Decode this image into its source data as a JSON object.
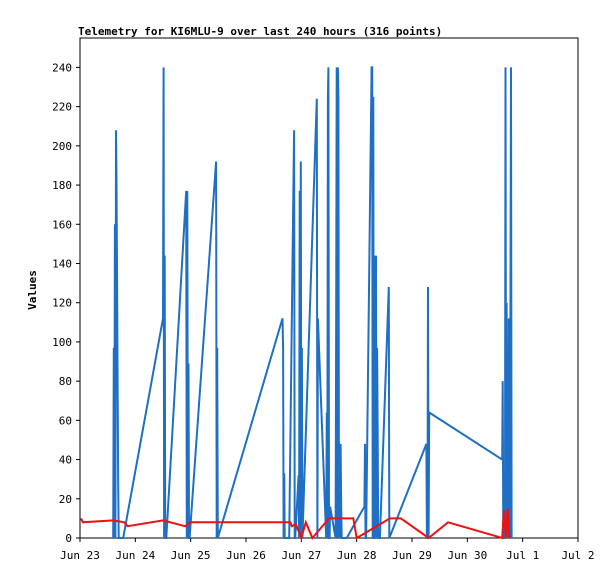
{
  "chart_data": {
    "type": "line",
    "title": "Telemetry for KI6MLU-9 over last 240 hours (316 points)",
    "xlabel": "",
    "ylabel": "Values",
    "x_unit": "days since Jun 23",
    "xlim": [
      0,
      9
    ],
    "ylim": [
      0,
      255
    ],
    "yticks": [
      0,
      20,
      40,
      60,
      80,
      100,
      120,
      140,
      160,
      180,
      200,
      220,
      240
    ],
    "xtick_labels": [
      "Jun 23",
      "Jun 24",
      "Jun 25",
      "Jun 26",
      "Jun 27",
      "Jun 28",
      "Jun 29",
      "Jun 30",
      "Jul 1",
      "Jul 2"
    ],
    "grid": false,
    "legend": "none",
    "colors": {
      "blue": "#1f6fc4",
      "red": "#ee1111"
    },
    "series": [
      {
        "color": "#1f6fc4",
        "x": [
          0.6,
          0.61,
          0.62,
          0.63,
          0.64,
          0.65,
          0.66,
          0.67,
          0.68,
          0.69,
          0.7,
          0.71,
          0.72,
          0.73,
          0.74,
          0.75,
          0.76,
          0.77,
          0.78,
          1.5,
          1.51,
          1.52,
          1.53,
          1.54,
          1.55,
          1.56,
          1.92,
          1.93,
          1.94,
          1.95,
          1.96,
          1.97,
          1.98,
          2.46,
          2.47,
          2.48,
          2.49,
          3.66,
          3.67,
          3.68,
          3.69,
          3.7,
          3.78,
          3.87,
          3.88,
          3.89,
          3.95,
          3.96,
          3.97,
          3.98,
          3.99,
          4.0,
          4.01,
          4.02,
          4.28,
          4.29,
          4.3,
          4.45,
          4.46,
          4.47,
          4.48,
          4.49,
          4.5,
          4.51,
          4.52,
          4.62,
          4.63,
          4.64,
          4.65,
          4.66,
          4.67,
          4.68,
          4.69,
          4.7,
          4.71,
          4.72,
          4.73,
          4.74,
          4.75,
          4.76,
          4.77,
          4.78,
          4.79,
          4.8,
          4.81,
          4.82,
          5.14,
          5.15,
          5.16,
          5.17,
          5.27,
          5.28,
          5.29,
          5.3,
          5.31,
          5.32,
          5.33,
          5.34,
          5.35,
          5.36,
          5.37,
          5.38,
          5.39,
          5.4,
          5.41,
          5.42,
          5.58,
          5.59,
          6.26,
          6.27,
          6.28,
          6.29,
          6.3,
          6.31,
          7.63,
          7.64,
          7.65,
          7.66,
          7.67,
          7.68,
          7.69,
          7.7,
          7.71,
          7.72,
          7.73,
          7.74,
          7.75,
          7.76,
          7.77,
          7.78,
          7.79,
          7.8
        ],
        "y": [
          0,
          97,
          0,
          160,
          0,
          208,
          182,
          130,
          79,
          27,
          0,
          0,
          0,
          0,
          0,
          0,
          0,
          0,
          0,
          112,
          240,
          0,
          144,
          0,
          0,
          0,
          177,
          0,
          177,
          0,
          89,
          0,
          0,
          192,
          0,
          97,
          0,
          112,
          97,
          0,
          33,
          0,
          0,
          208,
          0,
          0,
          32,
          0,
          177,
          0,
          192,
          0,
          97,
          0,
          224,
          0,
          112,
          0,
          64,
          0,
          224,
          240,
          0,
          0,
          16,
          0,
          120,
          240,
          0,
          240,
          225,
          0,
          48,
          0,
          48,
          16,
          0,
          0,
          0,
          0,
          0,
          0,
          0,
          0,
          0,
          0,
          16,
          48,
          0,
          0,
          240,
          240,
          0,
          225,
          0,
          0,
          144,
          0,
          144,
          0,
          97,
          52,
          0,
          0,
          0,
          0,
          128,
          0,
          48,
          0,
          0,
          128,
          0,
          64,
          40,
          80,
          0,
          0,
          0,
          16,
          240,
          0,
          120,
          0,
          48,
          0,
          112,
          80,
          0,
          128,
          240,
          0
        ]
      },
      {
        "color": "#ee1111",
        "x": [
          0.02,
          0.05,
          0.6,
          0.8,
          0.86,
          1.5,
          1.9,
          2.0,
          2.6,
          3.8,
          3.83,
          3.9,
          4.0,
          4.08,
          4.2,
          4.5,
          4.94,
          5.0,
          5.6,
          5.8,
          6.3,
          6.3,
          6.65,
          7.63,
          7.66,
          7.7,
          7.73,
          7.76
        ],
        "y": [
          10,
          8,
          9,
          8,
          6,
          9,
          6,
          8,
          8,
          8,
          6,
          7,
          0,
          8,
          0,
          10,
          10,
          0,
          10,
          10,
          0,
          0,
          8,
          0,
          14,
          0,
          15,
          0
        ]
      }
    ]
  }
}
